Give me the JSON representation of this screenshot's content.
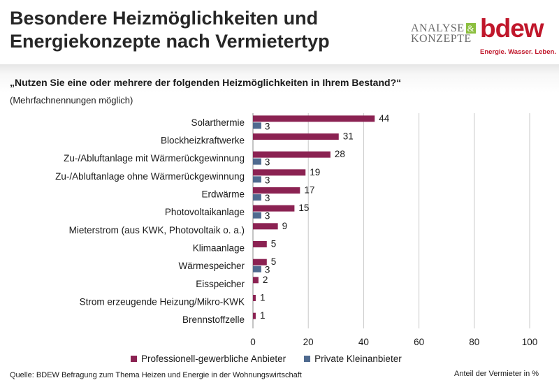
{
  "title_line1": "Besondere Heizmöglichkeiten und",
  "title_line2": "Energiekonzepte nach Vermietertyp",
  "logos": {
    "analyse_line1": "ANALYSE",
    "analyse_amp": "&",
    "analyse_line2": "KONZEPTE",
    "bdew": "bdew",
    "bdew_tagline": "Energie. Wasser. Leben."
  },
  "question": "„Nutzen Sie eine oder mehrere der folgenden Heizmöglichkeiten in Ihrem Bestand?“",
  "subquestion": "(Mehrfachnennungen möglich)",
  "source": "Quelle: BDEW Befragung zum Thema Heizen und Energie in der Wohnungswirtschaft",
  "unit_label": "Anteil der Vermieter in %",
  "colors": {
    "professional": "#8b2252",
    "private": "#4f6a8f",
    "grid": "#c8c8c8"
  },
  "chart_data": {
    "type": "bar",
    "orientation": "horizontal",
    "categories": [
      "Solarthermie",
      "Blockheizkraftwerke",
      "Zu-/Abluftanlage mit Wärmerückgewinnung",
      "Zu-/Abluftanlage ohne Wärmerückgewinnung",
      "Erdwärme",
      "Photovoltaikanlage",
      "Mieterstrom (aus KWK, Photovoltaik o. a.)",
      "Klimaanlage",
      "Wärmespeicher",
      "Eisspeicher",
      "Strom erzeugende Heizung/Mikro-KWK",
      "Brennstoffzelle"
    ],
    "series": [
      {
        "name": "Professionell-gewerbliche Anbieter",
        "values": [
          44,
          31,
          28,
          19,
          17,
          15,
          9,
          5,
          5,
          2,
          1,
          1
        ]
      },
      {
        "name": "Private Kleinanbieter",
        "values": [
          3,
          null,
          3,
          3,
          3,
          3,
          null,
          null,
          3,
          null,
          null,
          null
        ]
      }
    ],
    "xlim": [
      0,
      100
    ],
    "xticks": [
      "0",
      "20",
      "40",
      "60",
      "80",
      "100"
    ],
    "grid": "vertical",
    "legend": "bottom"
  }
}
